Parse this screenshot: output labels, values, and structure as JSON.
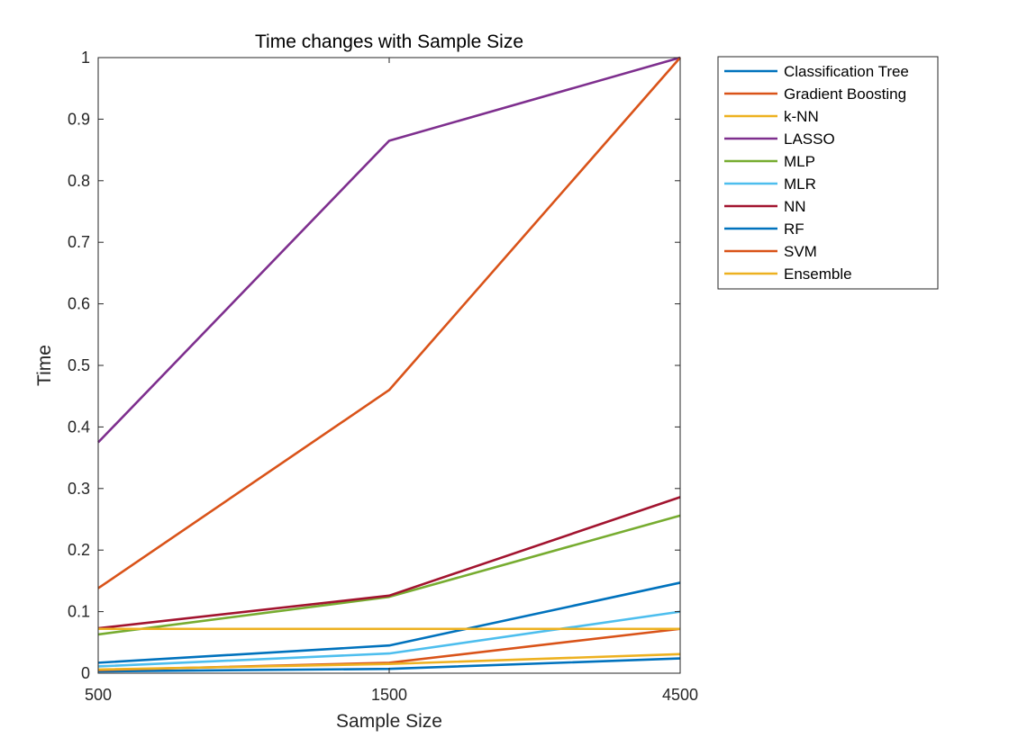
{
  "chart_data": {
    "type": "line",
    "title": "Time changes with Sample Size",
    "xlabel": "Sample Size",
    "ylabel": "Time",
    "categories": [
      "500",
      "1500",
      "4500"
    ],
    "ylim": [
      0,
      1
    ],
    "yticks": [
      "0",
      "0.1",
      "0.2",
      "0.3",
      "0.4",
      "0.5",
      "0.6",
      "0.7",
      "0.8",
      "0.9",
      "1"
    ],
    "grid": false,
    "legend_position": "outside-top-right",
    "series": [
      {
        "name": "Classification Tree",
        "color": "#0072BD",
        "values": [
          0.003,
          0.007,
          0.024
        ]
      },
      {
        "name": "Gradient Boosting",
        "color": "#D95319",
        "values": [
          0.005,
          0.017,
          0.072
        ]
      },
      {
        "name": "k-NN",
        "color": "#EDB120",
        "values": [
          0.006,
          0.015,
          0.031
        ]
      },
      {
        "name": "LASSO",
        "color": "#7E2F8E",
        "values": [
          0.375,
          0.865,
          1.0
        ]
      },
      {
        "name": "MLP",
        "color": "#77AC30",
        "values": [
          0.063,
          0.124,
          0.256
        ]
      },
      {
        "name": "MLR",
        "color": "#4DBEEE",
        "values": [
          0.011,
          0.032,
          0.1
        ]
      },
      {
        "name": "NN",
        "color": "#A2142F",
        "values": [
          0.073,
          0.126,
          0.286
        ]
      },
      {
        "name": "RF",
        "color": "#0072BD",
        "values": [
          0.017,
          0.045,
          0.147
        ]
      },
      {
        "name": "SVM",
        "color": "#D95319",
        "values": [
          0.138,
          0.46,
          1.0
        ]
      },
      {
        "name": "Ensemble",
        "color": "#EDB120",
        "values": [
          0.072,
          0.072,
          0.072
        ]
      }
    ]
  }
}
